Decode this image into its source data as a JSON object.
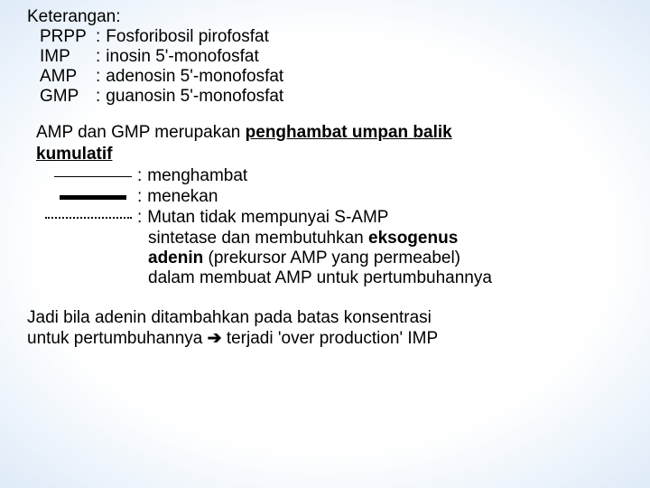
{
  "keterangan": {
    "title": "Keterangan:",
    "rows": [
      {
        "abbr": "PRPP",
        "desc": "Fosforibosil pirofosfat"
      },
      {
        "abbr": "IMP",
        "desc": "inosin 5'-monofosfat"
      },
      {
        "abbr": "AMP",
        "desc": "adenosin 5'-monofosfat"
      },
      {
        "abbr": "GMP",
        "desc": "guanosin 5'-monofosfat"
      }
    ]
  },
  "statement": {
    "part1": "AMP dan GMP merupakan ",
    "bold_ul1": "penghambat umpan balik",
    "bold_ul2": "kumulatif"
  },
  "legend": {
    "row1": "menghambat",
    "row2": "menekan",
    "row3_l1": "Mutan tidak mempunyai S-AMP",
    "row3_l2a": "sintetase dan membutuhkan ",
    "row3_l2b": "eksogenus",
    "row3_l3a": "adenin",
    "row3_l3b": " (prekursor AMP yang permeabel)",
    "row3_l4": "dalam membuat AMP untuk pertumbuhannya"
  },
  "conclusion": {
    "line1": "Jadi bila adenin ditambahkan pada batas konsentrasi",
    "line2a": "untuk pertumbuhannya ",
    "arrow": "➔",
    "line2b": " terjadi  'over production' IMP"
  },
  "colors": {
    "text": "#000000",
    "bg_center": "#ffffff",
    "bg_edge": "#5a8fc9"
  }
}
